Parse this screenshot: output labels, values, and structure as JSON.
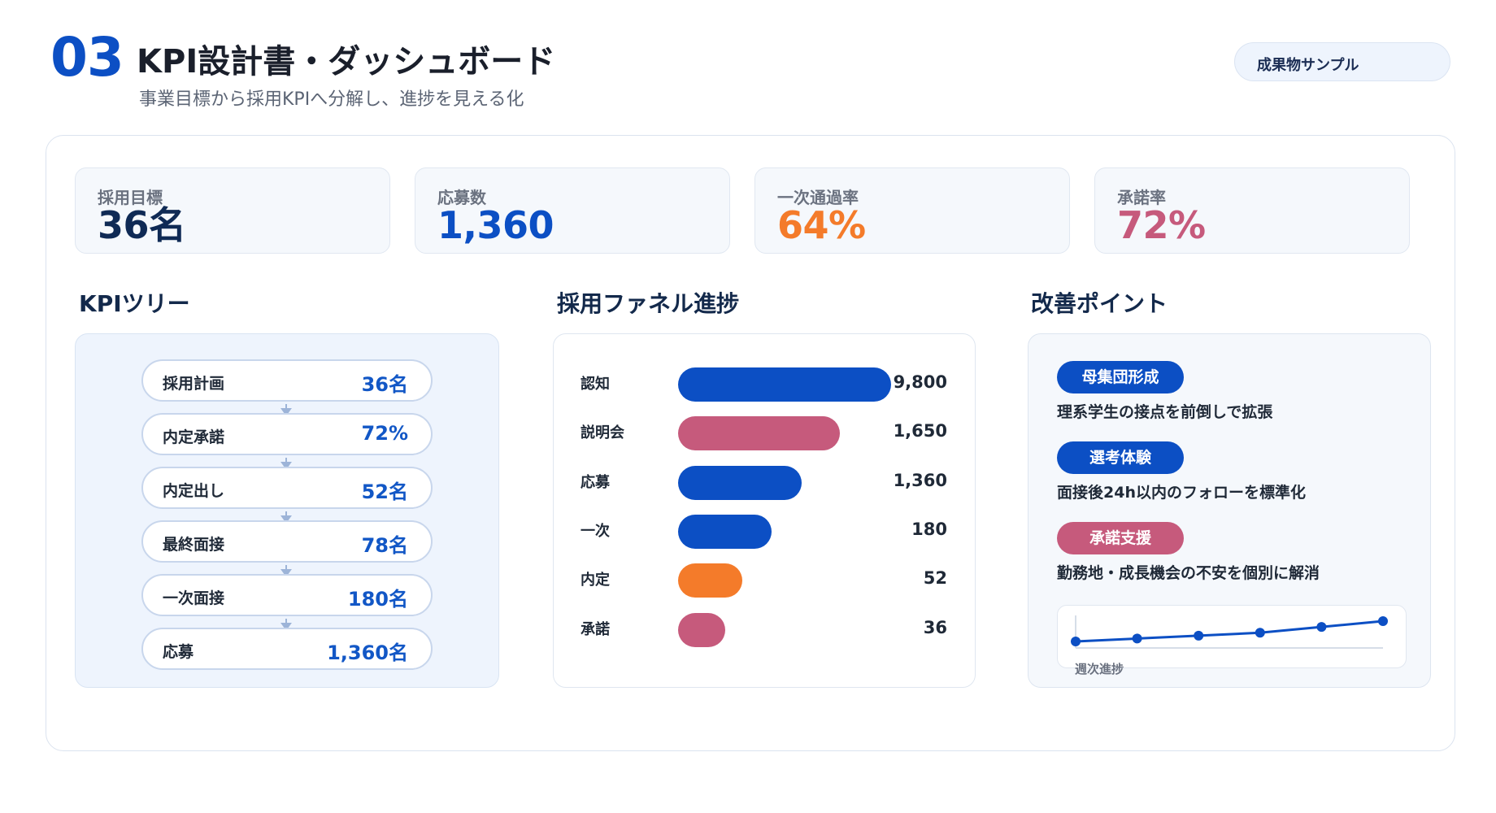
{
  "header": {
    "number": "03",
    "title": "KPI設計書・ダッシュボード",
    "subtitle": "事業目標から採用KPIへ分解し、進捗を見える化",
    "badge": "成果物サンプル"
  },
  "kpis": [
    {
      "label": "採用目標",
      "value": "36名",
      "color": "#0f2a55"
    },
    {
      "label": "応募数",
      "value": "1,360",
      "color": "#0c4fc4"
    },
    {
      "label": "一次通過率",
      "value": "64%",
      "color": "#f47b2a"
    },
    {
      "label": "承諾率",
      "value": "72%",
      "color": "#c65a7c"
    }
  ],
  "kpi_tree": {
    "title": "KPIツリー",
    "nodes": [
      {
        "label": "採用計画",
        "value": "36名"
      },
      {
        "label": "内定承諾",
        "value": "72%"
      },
      {
        "label": "内定出し",
        "value": "52名"
      },
      {
        "label": "最終面接",
        "value": "78名"
      },
      {
        "label": "一次面接",
        "value": "180名"
      },
      {
        "label": "応募",
        "value": "1,360名"
      }
    ]
  },
  "funnel": {
    "title": "採用ファネル進捗",
    "stages": [
      {
        "label": "認知",
        "value": "9,800",
        "fill": 1.0,
        "color": "#0c4fc4"
      },
      {
        "label": "説明会",
        "value": "1,650",
        "fill": 0.76,
        "color": "#c65a7c"
      },
      {
        "label": "応募",
        "value": "1,360",
        "fill": 0.58,
        "color": "#0c4fc4"
      },
      {
        "label": "一次",
        "value": "180",
        "fill": 0.44,
        "color": "#0c4fc4"
      },
      {
        "label": "内定",
        "value": "52",
        "fill": 0.3,
        "color": "#f47b2a"
      },
      {
        "label": "承諾",
        "value": "36",
        "fill": 0.22,
        "color": "#c65a7c"
      }
    ]
  },
  "improvements": {
    "title": "改善ポイント",
    "items": [
      {
        "tag": "母集団形成",
        "text": "理系学生の接点を前倒しで拡張",
        "color": "#0c4fc4"
      },
      {
        "tag": "選考体験",
        "text": "面接後24h以内のフォローを標準化",
        "color": "#0c4fc4"
      },
      {
        "tag": "承諾支援",
        "text": "勤務地・成長機会の不安を個別に解消",
        "color": "#c65a7c"
      }
    ],
    "sparkline": {
      "label": "週次進捗",
      "values": [
        0.0,
        0.1,
        0.2,
        0.3,
        0.5,
        0.7
      ],
      "color": "#0c4fc4"
    }
  }
}
